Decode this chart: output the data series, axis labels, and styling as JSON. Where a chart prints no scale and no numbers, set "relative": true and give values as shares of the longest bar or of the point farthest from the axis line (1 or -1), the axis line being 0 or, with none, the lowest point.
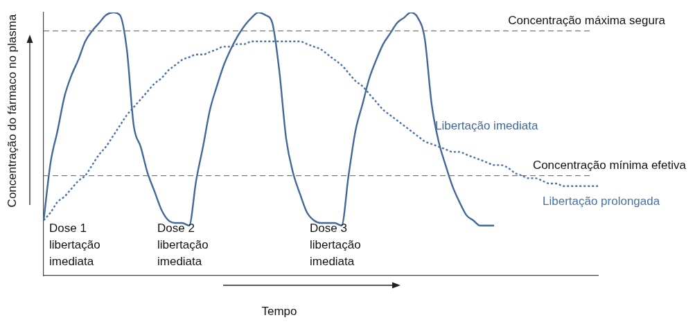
{
  "chart_data": {
    "type": "line",
    "relative": true,
    "xlabel": "Tempo",
    "ylabel": "Concentração do fármaco no plasma",
    "categories": [
      null,
      null,
      null,
      null,
      null,
      null,
      null,
      null,
      null,
      null,
      null,
      null,
      null,
      null,
      null,
      null,
      null,
      null,
      null,
      null,
      null,
      null,
      null,
      null,
      null,
      null,
      null,
      null,
      null,
      null,
      null,
      null,
      null,
      null,
      null,
      null,
      null,
      null,
      null,
      null,
      null,
      null,
      null,
      null,
      null,
      null,
      null,
      null,
      null,
      null,
      null,
      null,
      null,
      null,
      null,
      null,
      null,
      null,
      null,
      null,
      null,
      null,
      null,
      null,
      null,
      null,
      null,
      null,
      null,
      null,
      null,
      null,
      null,
      null,
      null,
      null,
      null,
      null,
      null,
      null,
      null
    ],
    "series": [
      {
        "name": "Libertação imediata",
        "color": "#44679a",
        "line_style": "solid",
        "values": [
          0.21,
          0.43,
          0.55,
          0.68,
          0.76,
          0.82,
          0.89,
          0.93,
          0.96,
          0.99,
          1.0,
          0.99,
          0.86,
          0.57,
          0.49,
          0.39,
          0.32,
          0.25,
          0.21,
          0.2,
          0.2,
          0.19,
          0.36,
          0.49,
          0.63,
          0.72,
          0.8,
          0.86,
          0.91,
          0.95,
          0.98,
          1.0,
          0.99,
          0.96,
          0.78,
          0.52,
          0.39,
          0.31,
          0.24,
          0.21,
          0.2,
          0.2,
          0.2,
          0.19,
          0.38,
          0.55,
          0.65,
          0.75,
          0.82,
          0.88,
          0.92,
          0.96,
          0.98,
          1.0,
          0.98,
          0.9,
          0.65,
          0.51,
          0.42,
          0.34,
          0.28,
          0.23,
          0.21,
          0.19,
          0.19,
          0.19,
          null,
          null,
          null,
          null,
          null,
          null,
          null,
          null,
          null,
          null,
          null,
          null,
          null,
          null,
          null
        ]
      },
      {
        "name": "Libertação prolongada",
        "color": "#4a72a8",
        "line_style": "dotted",
        "values": [
          0.21,
          0.24,
          0.28,
          0.3,
          0.33,
          0.36,
          0.38,
          0.42,
          0.46,
          0.49,
          0.53,
          0.57,
          0.61,
          0.64,
          0.67,
          0.7,
          0.73,
          0.75,
          0.78,
          0.8,
          0.82,
          0.83,
          0.84,
          0.84,
          0.85,
          0.86,
          0.87,
          0.87,
          0.88,
          0.88,
          0.89,
          0.89,
          0.89,
          0.89,
          0.89,
          0.89,
          0.89,
          0.89,
          0.88,
          0.87,
          0.86,
          0.84,
          0.82,
          0.8,
          0.77,
          0.74,
          0.72,
          0.69,
          0.66,
          0.63,
          0.61,
          0.59,
          0.57,
          0.55,
          0.53,
          0.51,
          0.5,
          0.49,
          0.48,
          0.47,
          0.47,
          0.46,
          0.45,
          0.44,
          0.43,
          0.42,
          0.42,
          0.41,
          0.39,
          0.38,
          0.37,
          0.37,
          0.36,
          0.35,
          0.35,
          0.34,
          0.34,
          0.34,
          0.34,
          0.34,
          0.34
        ]
      }
    ],
    "ref_lines": [
      {
        "axis": "y",
        "value": 0.93,
        "label": "Concentração máxima segura",
        "color": "#7a7a7a",
        "line_style": "dashed"
      },
      {
        "axis": "y",
        "value": 0.38,
        "label": "Concentração mínima efetiva",
        "color": "#7a7a7a",
        "line_style": "dashed"
      }
    ],
    "annotations": [
      "Dose 1\nlibertação\nimediata",
      "Dose 2\nlibertação\nimediata",
      "Dose 3\nlibertação\nimediata"
    ]
  }
}
